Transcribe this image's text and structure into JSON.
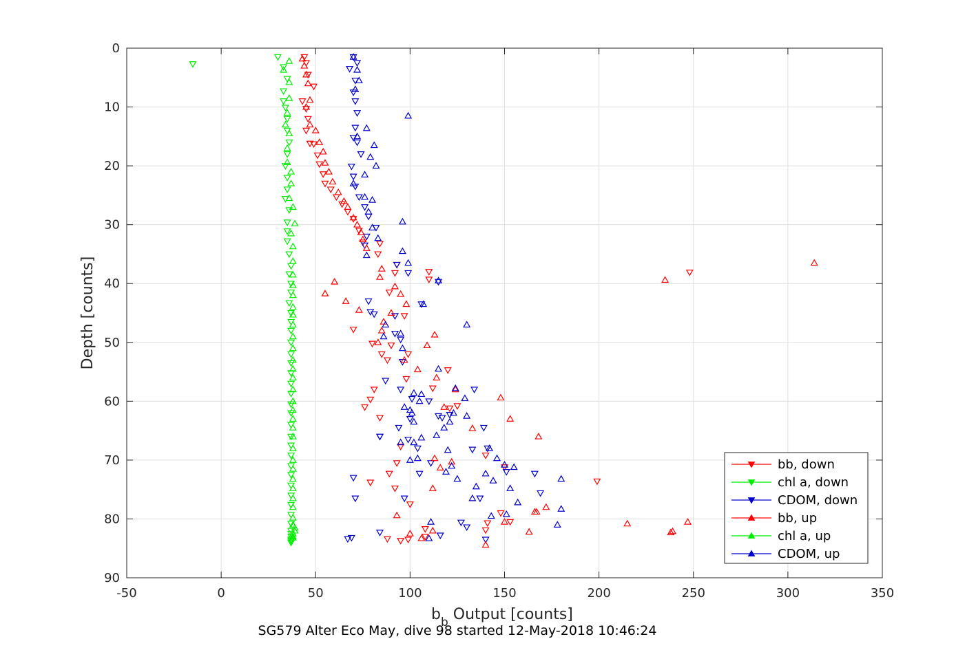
{
  "chart_data": {
    "type": "scatter",
    "xlabel": "b",
    "xlabel_sub": "b",
    "xlabel_tail": " Output [counts]",
    "ylabel": "Depth [counts]",
    "caption": "SG579 Alter Eco May, dive 98 started 12-May-2018 10:46:24",
    "xlim": [
      -50,
      350
    ],
    "ylim": [
      0,
      90
    ],
    "y_reversed": true,
    "grid": true,
    "legend_position": "bottom-right",
    "xticks": [
      "-50",
      "0",
      "50",
      "100",
      "150",
      "200",
      "250",
      "300",
      "350"
    ],
    "yticks": [
      "0",
      "10",
      "20",
      "30",
      "40",
      "50",
      "60",
      "70",
      "80",
      "90"
    ],
    "series": [
      {
        "name": "bb, down",
        "color": "#ff0000",
        "marker": "triangle-down",
        "x": [
          44,
          45,
          46,
          49,
          43,
          45,
          46,
          45,
          47,
          49,
          51,
          52,
          54,
          55,
          58,
          61,
          64,
          67,
          70,
          73,
          75,
          84,
          83,
          93,
          92,
          110,
          110,
          89,
          97,
          70,
          80,
          85,
          88,
          81,
          79,
          76,
          84,
          95,
          93,
          89,
          79,
          92,
          100,
          148,
          153,
          108,
          95,
          121,
          125,
          112,
          98,
          120,
          99,
          90,
          150,
          140,
          199,
          248,
          140,
          141,
          99,
          108,
          88
        ],
        "y": [
          1.5,
          2.5,
          4.5,
          6.5,
          9.0,
          10.3,
          12.0,
          14.0,
          16.2,
          16.3,
          18.2,
          19.7,
          21.4,
          23.0,
          24.0,
          25.3,
          26.5,
          27.8,
          29.0,
          31.0,
          33.0,
          33.2,
          35.0,
          36.8,
          38.2,
          38.0,
          39.3,
          41.5,
          45.5,
          47.8,
          50.2,
          52.0,
          53.0,
          58.0,
          59.7,
          61.0,
          62.8,
          67.7,
          70.5,
          72.3,
          73.8,
          74.8,
          77.5,
          79.0,
          80.5,
          81.7,
          83.7,
          61.2,
          60.8,
          57.8,
          56.2,
          54.7,
          52.0,
          50.5,
          71.2,
          69.2,
          73.6,
          38.1,
          81.9,
          80.7,
          83.5,
          83.0,
          83.4
        ]
      },
      {
        "name": "chl a, down",
        "color": "#00ee00",
        "marker": "triangle-down",
        "x": [
          -15,
          30,
          33,
          35,
          33,
          33,
          34,
          35,
          35,
          36,
          35,
          34,
          35,
          35,
          34,
          36,
          35,
          35,
          35,
          36,
          37,
          36,
          37,
          37,
          36,
          37,
          37,
          37,
          37,
          37,
          37,
          37,
          37,
          37,
          37,
          37,
          37,
          37,
          37,
          37,
          37,
          37,
          37,
          37,
          37,
          37,
          37,
          37,
          37,
          37,
          37,
          37,
          37,
          37
        ],
        "y": [
          2.7,
          1.5,
          3.2,
          5.2,
          7.3,
          9.0,
          10.1,
          12.0,
          14.0,
          16.0,
          18.0,
          20.0,
          22.0,
          24.0,
          25.6,
          27.5,
          29.6,
          31.1,
          32.8,
          35.0,
          37.0,
          38.4,
          40.0,
          41.5,
          43.3,
          45.0,
          46.5,
          48.0,
          50.0,
          52.0,
          53.5,
          55.2,
          57.0,
          58.7,
          60.5,
          62.0,
          64.0,
          66.0,
          67.5,
          69.2,
          71.0,
          72.5,
          74.3,
          76.0,
          77.6,
          79.3,
          80.8,
          82.0,
          82.5,
          83.0,
          83.5,
          83.7,
          84.0,
          84.0
        ]
      },
      {
        "name": "CDOM, down",
        "color": "#0000cc",
        "marker": "triangle-down",
        "x": [
          70,
          72,
          68,
          71,
          70,
          71,
          72,
          71,
          70,
          72,
          74,
          69,
          70,
          71,
          73,
          76,
          78,
          82,
          77,
          76,
          93,
          99,
          115,
          106,
          92,
          81,
          79,
          78,
          92,
          95,
          96,
          87,
          95,
          84,
          94,
          101,
          110,
          100,
          84,
          97,
          105,
          111,
          99,
          104,
          116,
          140,
          130,
          127,
          137,
          169,
          166,
          151,
          141,
          133,
          139,
          117,
          115,
          134,
          121,
          84,
          70,
          71,
          69,
          67
        ],
        "y": [
          1.5,
          2.5,
          3.5,
          5.5,
          7.5,
          9.0,
          11.0,
          13.5,
          15.2,
          16.0,
          18.0,
          20.1,
          21.8,
          23.5,
          25.3,
          27.0,
          28.6,
          30.5,
          32.0,
          33.5,
          36.8,
          38.2,
          39.7,
          43.5,
          45.5,
          45.2,
          44.8,
          43.0,
          48.5,
          49.5,
          53.3,
          56.5,
          58.0,
          66.0,
          64.5,
          59.6,
          60.0,
          63.0,
          82.3,
          76.5,
          72.3,
          70.5,
          66.5,
          68.0,
          82.8,
          83.5,
          81.4,
          80.6,
          76.5,
          75.6,
          72.3,
          72.0,
          68.0,
          68.2,
          64.5,
          62.8,
          62.5,
          58.0,
          62.3,
          66.0,
          73.0,
          76.5,
          83.2,
          83.4
        ]
      },
      {
        "name": "bb, up",
        "color": "#ff0000",
        "marker": "triangle-up",
        "x": [
          43,
          44,
          45,
          46,
          47,
          45,
          47,
          50,
          52,
          54,
          55,
          57,
          59,
          62,
          65,
          67,
          70,
          72,
          74,
          75,
          77,
          85,
          84,
          92,
          95,
          98,
          90,
          113,
          109,
          314,
          235,
          60,
          55,
          66,
          73,
          86,
          85,
          83,
          97,
          104,
          114,
          124,
          148,
          118,
          153,
          133,
          168,
          122,
          113,
          116,
          172,
          167,
          215,
          239,
          238,
          247,
          112,
          166,
          140,
          163,
          150,
          93,
          106,
          112,
          100
        ],
        "y": [
          1.8,
          3.0,
          4.5,
          6.0,
          8.8,
          10.0,
          13.0,
          14.0,
          16.0,
          17.6,
          19.5,
          21.0,
          22.7,
          24.5,
          26.0,
          27.0,
          28.8,
          30.0,
          31.3,
          32.5,
          34.0,
          37.5,
          38.9,
          40.5,
          41.8,
          43.5,
          45.0,
          48.7,
          50.5,
          36.5,
          39.4,
          39.7,
          41.7,
          43.0,
          44.5,
          46.5,
          48.0,
          50.0,
          53.0,
          54.6,
          56.0,
          58.0,
          59.4,
          61.0,
          63.0,
          64.6,
          66.0,
          70.3,
          69.7,
          71.3,
          78.0,
          78.8,
          80.8,
          82.1,
          82.3,
          80.5,
          74.8,
          78.8,
          84.4,
          82.2,
          80.5,
          79.4,
          83.3,
          82.0,
          82.5
        ]
      },
      {
        "name": "chl a, up",
        "color": "#00ee00",
        "marker": "triangle-up",
        "x": [
          36,
          33,
          36,
          36,
          35,
          34,
          36,
          35,
          35,
          37,
          37,
          36,
          38,
          39,
          37,
          38,
          38,
          38,
          38,
          38,
          38,
          38,
          38,
          38,
          38,
          38,
          38,
          38,
          38,
          38,
          38,
          38,
          38,
          38,
          38,
          38,
          38,
          38,
          38,
          38,
          38,
          38,
          38,
          38,
          38,
          39,
          39,
          38
        ],
        "y": [
          2.2,
          3.7,
          5.8,
          8.5,
          11.0,
          13.0,
          14.5,
          17.0,
          19.4,
          21.0,
          23.0,
          25.5,
          27.0,
          29.8,
          31.5,
          33.7,
          36.2,
          38.5,
          40.3,
          42.0,
          44.0,
          45.3,
          47.0,
          49.0,
          51.0,
          53.0,
          54.5,
          56.0,
          58.0,
          60.0,
          61.5,
          63.0,
          64.5,
          66.0,
          68.0,
          70.0,
          71.5,
          73.2,
          74.8,
          76.5,
          78.0,
          79.8,
          81.0,
          82.5,
          83.0,
          82.0,
          81.5,
          83.2
        ]
      },
      {
        "name": "CDOM, up",
        "color": "#0000cc",
        "marker": "triangle-up",
        "x": [
          70,
          72,
          73,
          71,
          99,
          77,
          72,
          81,
          79,
          82,
          76,
          70,
          76,
          80,
          78,
          80,
          96,
          83,
          96,
          77,
          99,
          115,
          107,
          130,
          96,
          86,
          95,
          87,
          115,
          124,
          129,
          102,
          101,
          100,
          97,
          105,
          106,
          123,
          121,
          142,
          155,
          157,
          135,
          180,
          180,
          178,
          143,
          111,
          110,
          151,
          153,
          133,
          125,
          122,
          119,
          100,
          104,
          95,
          106,
          130,
          102,
          118,
          114,
          102,
          120,
          146,
          150,
          140,
          144
        ],
        "y": [
          1.5,
          3.7,
          5.5,
          7.0,
          11.5,
          13.6,
          15.0,
          16.5,
          18.5,
          20.0,
          21.5,
          23.0,
          25.3,
          25.8,
          27.8,
          30.5,
          29.5,
          32.3,
          34.5,
          35.2,
          36.5,
          39.5,
          43.5,
          47.0,
          51.0,
          49.0,
          48.5,
          47.0,
          54.5,
          57.8,
          59.5,
          58.6,
          62.0,
          61.5,
          61.0,
          60.0,
          58.8,
          62.0,
          63.5,
          68.0,
          71.2,
          77.2,
          74.5,
          73.2,
          78.3,
          81.0,
          79.5,
          80.5,
          83.3,
          79.2,
          74.8,
          76.5,
          73.2,
          71.0,
          72.0,
          70.0,
          69.7,
          67.0,
          66.2,
          62.5,
          63.5,
          64.5,
          65.8,
          67.0,
          68.3,
          69.7,
          70.8,
          72.3,
          73.5
        ]
      }
    ]
  }
}
